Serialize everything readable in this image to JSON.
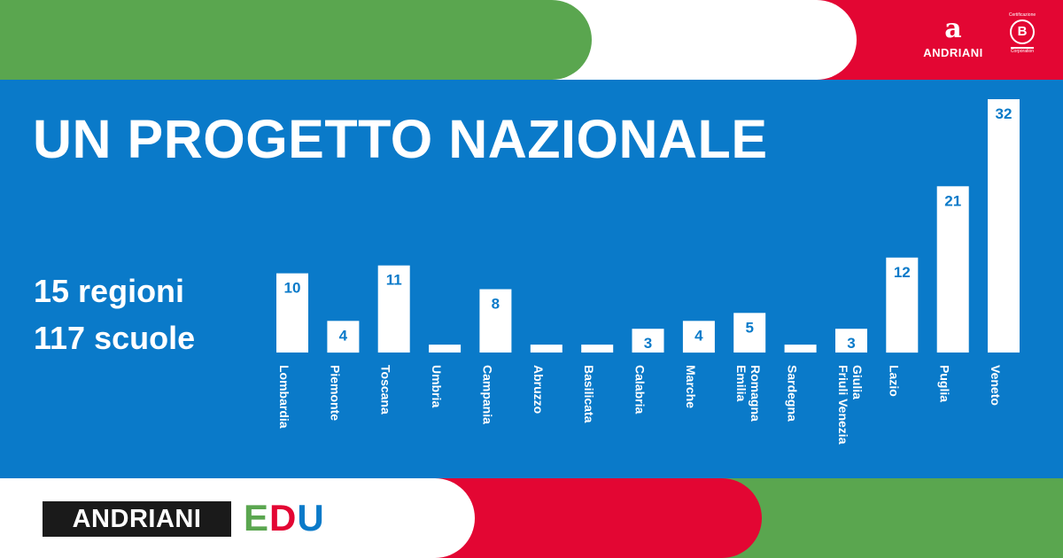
{
  "header": {
    "brand_mark": "a",
    "brand_name": "ANDRIANI",
    "bcorp_top": "Certificazione",
    "bcorp_letter": "B",
    "bcorp_bottom": "Corporation"
  },
  "headline": {
    "title": "UN PROGETTO NAZIONALE",
    "regions": "15 regioni",
    "schools": "117 scuole"
  },
  "footer": {
    "logo_text": "ANDRIANI",
    "edu": [
      "E",
      "D",
      "U"
    ]
  },
  "colors": {
    "green": "#5aa64f",
    "red": "#e30633",
    "blue": "#0a7ac9",
    "white": "#ffffff",
    "dark": "#1a1a1a"
  },
  "chart_data": {
    "type": "bar",
    "categories": [
      [
        "Lombardia"
      ],
      [
        "Piemonte"
      ],
      [
        "Toscana"
      ],
      [
        "Umbria"
      ],
      [
        "Campania"
      ],
      [
        "Abruzzo"
      ],
      [
        "Basilicata"
      ],
      [
        "Calabria"
      ],
      [
        "Marche"
      ],
      [
        "Emilia",
        "Romagna"
      ],
      [
        "Sardegna"
      ],
      [
        "Friuli Venezia",
        "Giulia"
      ],
      [
        "Lazio"
      ],
      [
        "Puglia"
      ],
      [
        "Veneto"
      ]
    ],
    "values": [
      10,
      4,
      11,
      1,
      8,
      1,
      1,
      3,
      4,
      5,
      1,
      3,
      12,
      21,
      32
    ],
    "title": "",
    "xlabel": "",
    "ylabel": "",
    "ylim": [
      0,
      32
    ],
    "grid": false,
    "legend": "none",
    "bar_color": "#ffffff",
    "label_color": "#0a7ac9"
  }
}
